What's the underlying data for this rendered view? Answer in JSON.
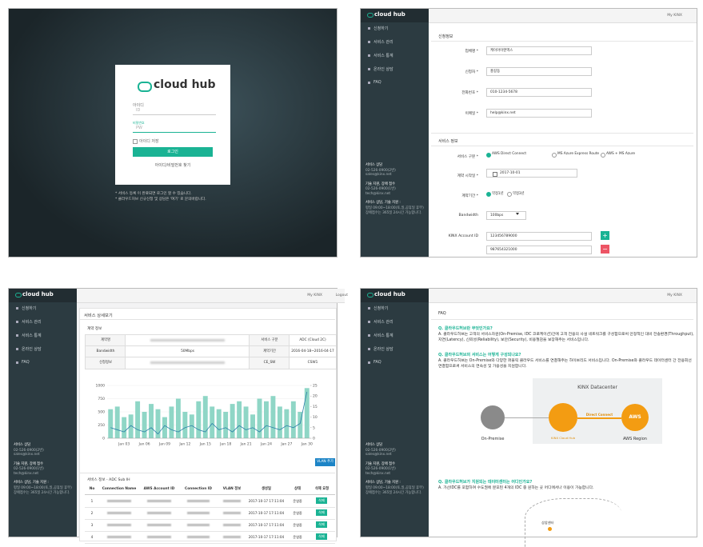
{
  "login": {
    "logo": "cloud hub",
    "id_label": "아이디",
    "id_placeholder": "ID",
    "pw_label": "비밀번호",
    "pw_placeholder": "PW",
    "remember": "아이디 저장",
    "button": "로그인",
    "find": "아이디/비밀번호 찾기",
    "notes": [
      "* 서비스 등록 이 완료되면 로그인 할 수 있습니다.",
      "* 클라우드허브 신규신청 및 상담은 '여기' 로 문의바랍니다."
    ]
  },
  "app": {
    "logo": "cloud hub",
    "mykinx": "My KINX",
    "logout": "Logout",
    "menu": [
      "신청하기",
      "서비스 관리",
      "서비스 통계",
      "온라인 상담",
      "FAQ"
    ],
    "contact": [
      "서비스 상담",
      "02-526-0900(2번)",
      "sales@kinx.net",
      "기술 지원, 장애 접수",
      "02-526-0900(1번)",
      "tech@kinx.net",
      "서비스 상담, 기술 지원 :",
      "평일 09:00~18:00(토,일,공휴일 휴무)",
      "장애접수는 365일 24시간 가능합니다."
    ]
  },
  "apply_form": {
    "section1": "신청정보",
    "fields": [
      {
        "label": "업체명 *",
        "value": "케이아이엔엑스"
      },
      {
        "label": "신청자 *",
        "value": "홍길동"
      },
      {
        "label": "전화번호 *",
        "value": "010-1234-5678"
      },
      {
        "label": "이메일 *",
        "value": "help@kinx.net"
      }
    ],
    "section2": "서비스 정보",
    "service_type": {
      "label": "서비스 구분 *",
      "options": [
        "AWS Direct Connect",
        "MS Azure Express Route",
        "AWS + MS Azure"
      ]
    },
    "start_date": {
      "label": "계약 시작일 *",
      "value": "2017-10-01"
    },
    "term": {
      "label": "계약기간 *",
      "options": [
        "약정1년",
        "약정3년"
      ]
    },
    "bandwidth": {
      "label": "Bandwidth",
      "value": "100bps"
    },
    "account": {
      "label": "KINX Account ID",
      "values": [
        "123456789000",
        "987654321000"
      ]
    },
    "add": "+",
    "remove": "−"
  },
  "service_detail": {
    "title": "서비스 상세보기",
    "contract_title": "계약 정보",
    "contract_rows": [
      {
        "label": "계약명",
        "label2": "서비스 구분",
        "value2": "ADC (Cloud 2C)"
      },
      {
        "label": "Bandwidth",
        "value": "50Mbps",
        "label2": "계약기간",
        "value2": "2016-04-18~2016-04-17"
      },
      {
        "label": "신청정보",
        "label2": "CE_SW",
        "value2": "CSW1"
      }
    ],
    "vlan_button": "VLAN 추가",
    "sub_title": "서비스 정보 - ADC Sub IH",
    "columns": [
      "No",
      "Connection Name",
      "AWS Account ID",
      "Connection ID",
      "VLAN 정보",
      "생성일",
      "상태",
      "삭제 요청"
    ],
    "rows": [
      {
        "no": 1,
        "created": "2017-10-17 17:11:04",
        "status": "운영중",
        "action": "삭제"
      },
      {
        "no": 2,
        "created": "2017-10-17 17:11:04",
        "status": "운영중",
        "action": "삭제"
      },
      {
        "no": 3,
        "created": "2017-10-17 17:11:04",
        "status": "운영중",
        "action": "삭제"
      },
      {
        "no": 4,
        "created": "2017-10-17 17:11:04",
        "status": "운영중",
        "action": "삭제"
      }
    ]
  },
  "faq": {
    "title": "FAQ",
    "items": [
      {
        "q": "Q. 클라우드허브란 무엇인가요?",
        "a": "A. 클라우드허브는 고객의 서비스자원(On-Premise, IDC 코로케이션)간에 고객 전용의 사설 네트워크를 구성함으로써 안정적인 대비 전송환경(Throughput), 지연(Latency), 신뢰성(Reliability), 보안(Security), 비용절감을 보장해주는 서비스입니다."
      },
      {
        "q": "Q. 클라우드허브의 서비스는 어떻게 구성되나요?",
        "a": "A. 클라우드허브는 On-Premise와 다양한 퍼블릭 클라우드 서비스를 연결해주는 하이브리드 서비스입니다. On-Premise와 클라우드 데이터센터 간 전용회선 연결함으로써 서비스의 연속성 및 가용성을 지원합니다."
      },
      {
        "q": "Q. 클라우드허브가 지원되는 데이터센터는 어디인가요?",
        "a": "A. 가산IDC를 포함하여 수도권에 분포된 4개의 IDC 중 원하는 곳 어디에서나 이용이 가능합니다."
      }
    ],
    "diagram": {
      "datacenter": "KINX Datacenter",
      "onpremise": "On-Premise",
      "link": "Direct Connect",
      "aws": "AWS",
      "region": "AWS Region",
      "hub": "KINX Cloud Hub"
    },
    "map_label": "상암센터"
  },
  "chart_data": {
    "type": "bar",
    "categories": [
      null,
      null,
      "Jan 03",
      null,
      null,
      "Jan 06",
      null,
      null,
      "Jan 09",
      null,
      null,
      "Jan 12",
      null,
      null,
      "Jan 15",
      null,
      null,
      "Jan 18",
      null,
      null,
      "Jan 21",
      null,
      null,
      "Jan 24",
      null,
      null,
      "Jan 27",
      null,
      null,
      "Jan 30"
    ],
    "series": [
      {
        "color": "#8fd6c6",
        "values": [
          550,
          600,
          400,
          450,
          700,
          500,
          650,
          550,
          400,
          600,
          750,
          500,
          450,
          700,
          800,
          600,
          550,
          500,
          650,
          700,
          600,
          450,
          750,
          700,
          800,
          600,
          550,
          700,
          500,
          950
        ]
      },
      {
        "type": "line",
        "axis": "y2",
        "color": "#2a7fa8",
        "values": [
          5,
          4,
          3,
          6,
          4,
          3,
          5,
          2,
          6,
          4,
          3,
          5,
          6,
          4,
          3,
          7,
          4,
          5,
          3,
          6,
          4,
          5,
          3,
          6,
          5,
          4,
          6,
          5,
          7,
          22
        ]
      }
    ],
    "ylim": [
      0,
      1000
    ],
    "yticks": [
      0,
      250,
      500,
      750,
      1000
    ],
    "y2lim": [
      0,
      25
    ],
    "y2ticks": [
      0,
      5,
      10,
      15,
      20,
      25
    ],
    "grid": true
  }
}
